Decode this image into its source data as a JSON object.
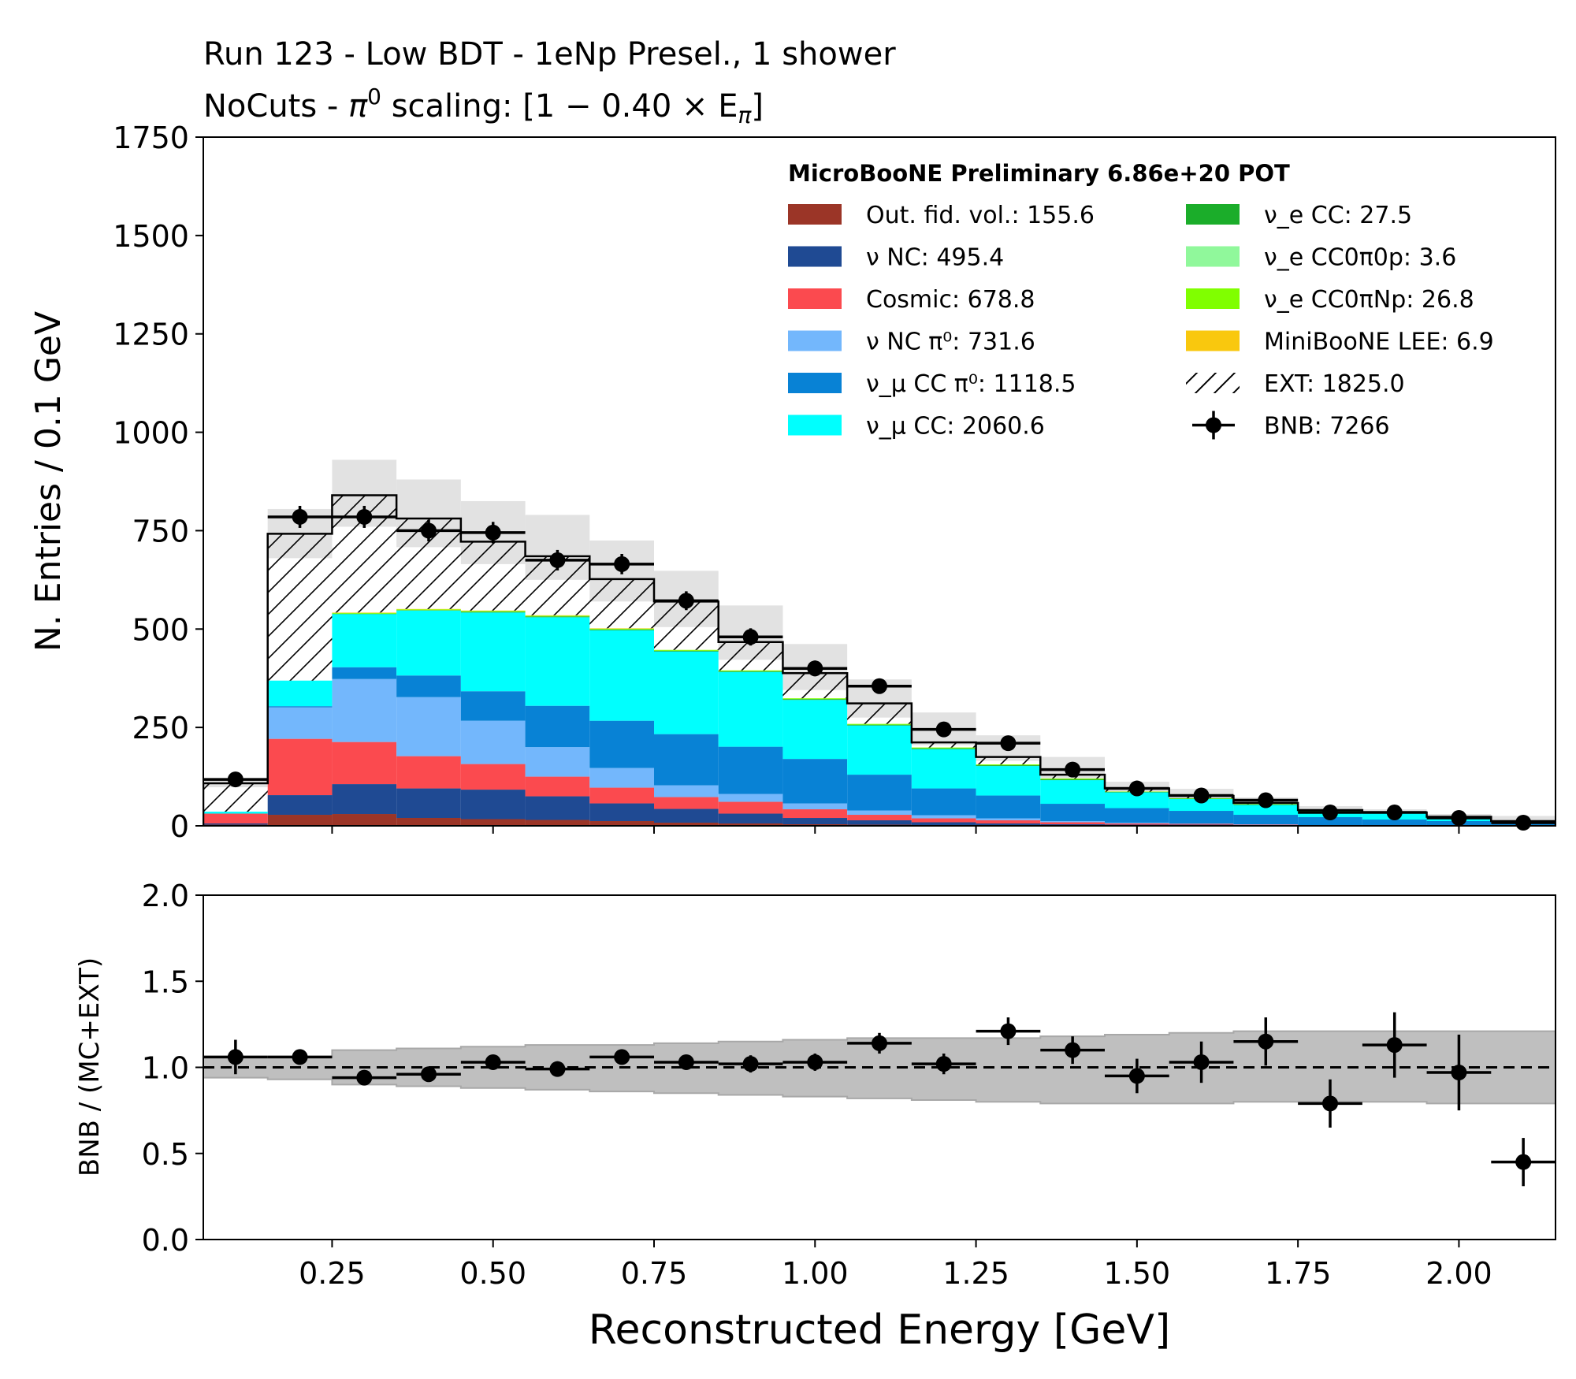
{
  "figure": {
    "title_line1": "Run 123 - Low BDT - 1eNp Presel., 1 shower",
    "title_line2_prefix": "NoCuts - ",
    "title_line2_rest": " scaling: [1 − 0.40 × E",
    "title_pi": "π",
    "title_sup": "0",
    "title_sub": "π",
    "title_close": "]"
  },
  "chart_data": [
    {
      "type": "bar",
      "stacked": true,
      "xlabel": "Reconstructed Energy [GeV]",
      "ylabel": "N. Entries / 0.1 GeV",
      "xlim": [
        0.05,
        2.15
      ],
      "ylim": [
        0,
        1750
      ],
      "yticks": [
        "0",
        "250",
        "500",
        "750",
        "1000",
        "1250",
        "1500",
        "1750"
      ],
      "xticks": [
        "0.25",
        "0.50",
        "0.75",
        "1.00",
        "1.25",
        "1.50",
        "1.75",
        "2.00"
      ],
      "bin_edges": [
        0.05,
        0.15,
        0.25,
        0.35,
        0.45,
        0.55,
        0.65,
        0.75,
        0.85,
        0.95,
        1.05,
        1.15,
        1.25,
        1.35,
        1.45,
        1.55,
        1.65,
        1.75,
        1.85,
        1.95,
        2.05,
        2.15
      ],
      "legend_header": "MicroBooNE Preliminary 6.86e+20 POT",
      "series": [
        {
          "name": "Out. fid. vol.: 155.6",
          "color": "#9b3527",
          "values": [
            3,
            28,
            30,
            20,
            17,
            15,
            12,
            8,
            6,
            4,
            3,
            2,
            2,
            1,
            1,
            1,
            1,
            0,
            0,
            0,
            0
          ]
        },
        {
          "name": "ν NC: 495.4",
          "color": "#1f4a93",
          "values": [
            3,
            50,
            76,
            75,
            75,
            60,
            45,
            35,
            25,
            16,
            11,
            7,
            4,
            3,
            2,
            2,
            1,
            1,
            1,
            0,
            0
          ]
        },
        {
          "name": "Cosmic: 678.8",
          "color": "#fb4a4f",
          "values": [
            25,
            143,
            107,
            82,
            65,
            50,
            40,
            30,
            30,
            22,
            14,
            10,
            8,
            5,
            3,
            2,
            1,
            1,
            0,
            0,
            0
          ]
        },
        {
          "name": "ν NC π⁰: 731.6",
          "color": "#73b7fc",
          "values": [
            0,
            80,
            160,
            150,
            110,
            75,
            50,
            30,
            20,
            15,
            11,
            8,
            5,
            3,
            2,
            1,
            1,
            0,
            0,
            0,
            0
          ]
        },
        {
          "name": "ν_μ CC π⁰: 1118.5",
          "color": "#0882d5",
          "values": [
            0,
            3,
            30,
            55,
            75,
            105,
            120,
            130,
            120,
            113,
            91,
            68,
            58,
            44,
            37,
            32,
            24,
            20,
            15,
            12,
            6
          ]
        },
        {
          "name": "ν_μ CC: 2060.6",
          "color": "#00fffe",
          "values": [
            5,
            65,
            135,
            165,
            200,
            225,
            230,
            210,
            190,
            150,
            125,
            100,
            75,
            60,
            40,
            30,
            25,
            15,
            15,
            10,
            5
          ]
        },
        {
          "name": "ν_e CC: 27.5",
          "color": "#1bad2a",
          "values": [
            0,
            0,
            1,
            1,
            2,
            2,
            2,
            2,
            2,
            2,
            2,
            2,
            2,
            2,
            1,
            1,
            1,
            1,
            1,
            1,
            1
          ]
        },
        {
          "name": "ν_e CC0π0p: 3.6",
          "color": "#90f89b",
          "values": [
            0,
            0,
            0,
            0,
            0,
            0,
            0,
            0,
            0,
            0,
            0,
            0,
            0,
            0,
            0,
            0,
            0,
            0,
            0,
            0,
            0
          ]
        },
        {
          "name": "ν_e CC0πNp: 26.8",
          "color": "#80ff00",
          "values": [
            0,
            0,
            2,
            2,
            2,
            2,
            2,
            2,
            2,
            2,
            2,
            2,
            2,
            2,
            1,
            1,
            1,
            0,
            0,
            0,
            0
          ]
        },
        {
          "name": "MiniBooNE LEE: 6.9",
          "color": "#f9c80e",
          "values": [
            0,
            0,
            1,
            1,
            1,
            1,
            1,
            0,
            0,
            0,
            0,
            0,
            0,
            0,
            0,
            0,
            0,
            0,
            0,
            0,
            0
          ]
        },
        {
          "name": "EXT: 1825.0",
          "color": "hatch",
          "values": [
            72,
            373,
            298,
            230,
            175,
            150,
            125,
            123,
            72,
            64,
            52,
            13,
            19,
            12,
            8,
            6,
            4,
            3,
            2,
            0,
            0
          ]
        }
      ],
      "mc_ext_total": [
        108,
        742,
        840,
        781,
        722,
        685,
        627,
        570,
        467,
        388,
        311,
        212,
        175,
        130,
        95,
        76,
        58,
        40,
        34,
        23,
        12
      ],
      "uncertainty_band": {
        "color": "#e2e2e2",
        "up": [
          120,
          805,
          930,
          880,
          825,
          790,
          725,
          648,
          560,
          462,
          372,
          288,
          230,
          175,
          112,
          94,
          72,
          50,
          42,
          30,
          25
        ],
        "down": [
          98,
          680,
          760,
          708,
          665,
          625,
          570,
          505,
          422,
          345,
          275,
          205,
          165,
          115,
          80,
          62,
          44,
          32,
          26,
          17,
          8
        ]
      },
      "data": {
        "name": "BNB: 7266",
        "x": [
          0.1,
          0.2,
          0.3,
          0.4,
          0.5,
          0.6,
          0.7,
          0.8,
          0.9,
          1.0,
          1.1,
          1.2,
          1.3,
          1.4,
          1.5,
          1.6,
          1.7,
          1.8,
          1.9,
          2.0,
          2.1
        ],
        "y": [
          118,
          785,
          785,
          750,
          745,
          675,
          665,
          572,
          480,
          400,
          355,
          245,
          210,
          143,
          95,
          77,
          65,
          34,
          34,
          20,
          8
        ]
      }
    },
    {
      "type": "scatter",
      "xlabel": "Reconstructed Energy [GeV]",
      "ylabel": "BNB / (MC+EXT)",
      "xlim": [
        0.05,
        2.15
      ],
      "ylim": [
        0,
        2
      ],
      "yticks": [
        "0.0",
        "0.5",
        "1.0",
        "1.5",
        "2.0"
      ],
      "reference_line": 1.0,
      "band": {
        "color": "#bfbfbf",
        "up": [
          1.06,
          1.06,
          1.1,
          1.11,
          1.12,
          1.13,
          1.13,
          1.14,
          1.15,
          1.16,
          1.17,
          1.17,
          1.17,
          1.18,
          1.19,
          1.2,
          1.21,
          1.21,
          1.21,
          1.21,
          1.21
        ],
        "down": [
          0.94,
          0.93,
          0.9,
          0.89,
          0.88,
          0.87,
          0.86,
          0.85,
          0.84,
          0.83,
          0.82,
          0.81,
          0.8,
          0.79,
          0.79,
          0.79,
          0.8,
          0.8,
          0.8,
          0.79,
          0.79
        ]
      },
      "x": [
        0.1,
        0.2,
        0.3,
        0.4,
        0.5,
        0.6,
        0.7,
        0.8,
        0.9,
        1.0,
        1.1,
        1.2,
        1.3,
        1.4,
        1.5,
        1.6,
        1.7,
        1.8,
        1.9,
        2.0,
        2.1
      ],
      "y": [
        1.06,
        1.06,
        0.94,
        0.96,
        1.03,
        0.99,
        1.06,
        1.03,
        1.02,
        1.03,
        1.14,
        1.02,
        1.21,
        1.1,
        0.95,
        1.03,
        1.15,
        0.79,
        1.13,
        0.97,
        0.45
      ],
      "yerr": [
        0.1,
        0.04,
        0.04,
        0.04,
        0.04,
        0.04,
        0.04,
        0.04,
        0.05,
        0.05,
        0.06,
        0.06,
        0.08,
        0.08,
        0.1,
        0.12,
        0.14,
        0.14,
        0.19,
        0.22,
        0.14
      ]
    }
  ]
}
